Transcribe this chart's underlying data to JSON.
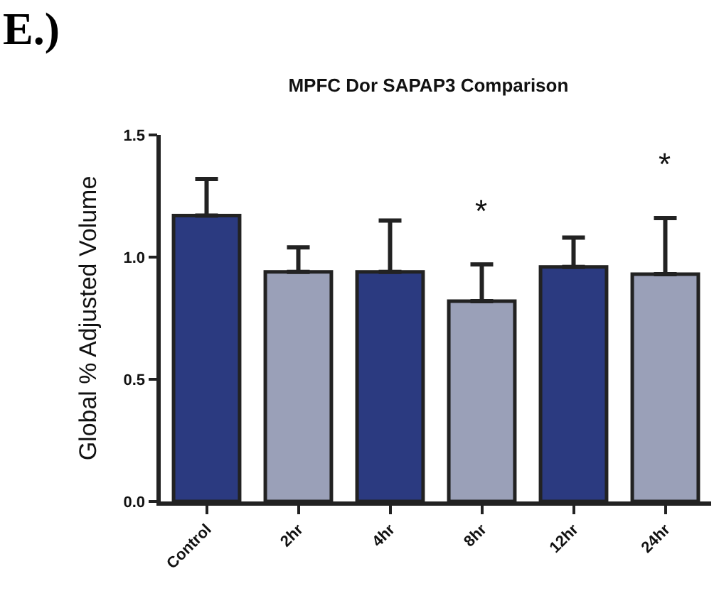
{
  "chart_data": {
    "type": "bar",
    "title": "MPFC Dor SAPAP3 Comparison",
    "ylabel": "Global % Adjusted Volume",
    "categories": [
      "Control",
      "2hr",
      "4hr",
      "8hr",
      "12hr",
      "24hr"
    ],
    "values": [
      1.17,
      0.94,
      0.94,
      0.82,
      0.96,
      0.93
    ],
    "colors": [
      "#2b3a80",
      "#9aa0b8",
      "#2b3a80",
      "#9aa0b8",
      "#2b3a80",
      "#9aa0b8"
    ],
    "errors": [
      [
        1.17,
        1.32
      ],
      [
        0.94,
        1.04
      ],
      [
        0.94,
        1.15
      ],
      [
        0.82,
        0.97
      ],
      [
        0.96,
        1.08
      ],
      [
        0.93,
        1.16
      ]
    ],
    "ylim": [
      0,
      1.5
    ],
    "yticks": [
      {
        "value": 0,
        "label": "0.0"
      },
      {
        "value": 0.5,
        "label": "0.5"
      },
      {
        "value": 1,
        "label": "1.0"
      },
      {
        "value": 1.5,
        "label": "1.5"
      }
    ],
    "legend": false,
    "annotations": [
      "E.)",
      "*",
      "*"
    ]
  }
}
